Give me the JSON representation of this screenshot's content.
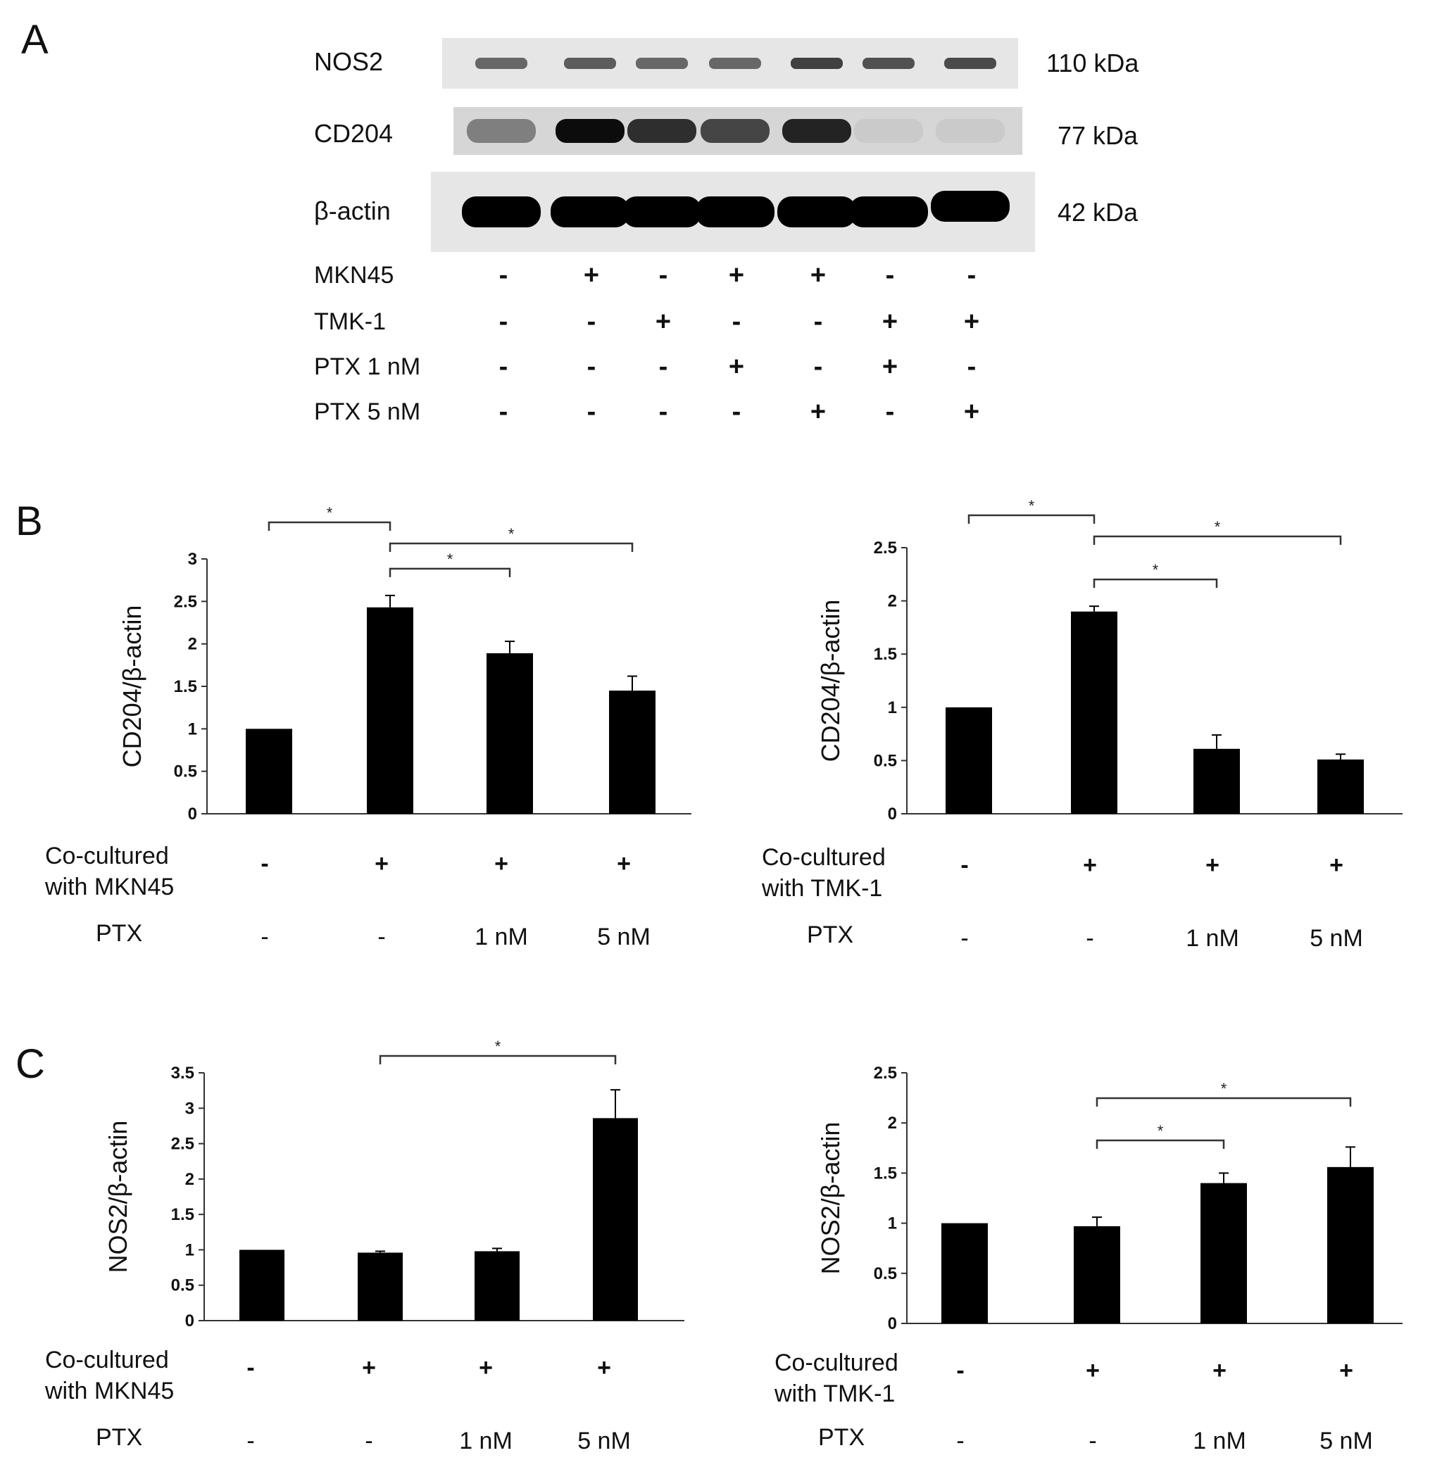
{
  "panels": {
    "a": "A",
    "b": "B",
    "c": "C"
  },
  "blot": {
    "bands": [
      {
        "name": "NOS2",
        "kda": "110 kDa",
        "intensity": [
          0.55,
          0.6,
          0.55,
          0.55,
          0.72,
          0.65,
          0.68
        ]
      },
      {
        "name": "CD204",
        "kda": "77 kDa",
        "intensity": [
          0.45,
          0.95,
          0.8,
          0.7,
          0.85,
          0.12,
          0.12
        ]
      },
      {
        "name": "β-actin",
        "kda": "42 kDa",
        "intensity": [
          1,
          1,
          1,
          1,
          1,
          1,
          1
        ]
      }
    ],
    "conditions": [
      {
        "label": "MKN45",
        "signs": [
          "-",
          "+",
          "-",
          "+",
          "+",
          "-",
          "-"
        ]
      },
      {
        "label": "TMK-1",
        "signs": [
          "-",
          "-",
          "+",
          "-",
          "-",
          "+",
          "+"
        ]
      },
      {
        "label": "PTX 1 nM",
        "signs": [
          "-",
          "-",
          "-",
          "+",
          "-",
          "+",
          "-"
        ]
      },
      {
        "label": "PTX 5 nM",
        "signs": [
          "-",
          "-",
          "-",
          "-",
          "+",
          "-",
          "+"
        ]
      }
    ]
  },
  "chart_data": [
    {
      "type": "bar",
      "panel": "B",
      "ylabel": "CD204/β-actin",
      "categories": [
        "-/-",
        "+/-",
        "+/1 nM",
        "+/5 nM"
      ],
      "values": [
        1.0,
        2.43,
        1.89,
        1.45
      ],
      "errors": [
        0,
        0.14,
        0.14,
        0.17
      ],
      "ylim": [
        0,
        3
      ],
      "ticks": [
        "0",
        "0.5",
        "1",
        "1.5",
        "2",
        "2.5",
        "3"
      ],
      "significance": [
        {
          "from": 0,
          "to": 1,
          "label": "*"
        },
        {
          "from": 1,
          "to": 2,
          "label": "*"
        },
        {
          "from": 1,
          "to": 3,
          "label": "*"
        }
      ],
      "conditions": {
        "row1_label": [
          "Co-cultured",
          "with MKN45"
        ],
        "row1": [
          "-",
          "+",
          "+",
          "+"
        ],
        "row2_label": "PTX",
        "row2": [
          "-",
          "-",
          "1 nM",
          "5 nM"
        ]
      }
    },
    {
      "type": "bar",
      "panel": "B",
      "ylabel": "CD204/β-actin",
      "categories": [
        "-/-",
        "+/-",
        "+/1 nM",
        "+/5 nM"
      ],
      "values": [
        1.0,
        1.9,
        0.61,
        0.51
      ],
      "errors": [
        0,
        0.05,
        0.13,
        0.05
      ],
      "ylim": [
        0,
        2.5
      ],
      "ticks": [
        "0",
        "0.5",
        "1",
        "1.5",
        "2",
        "2.5"
      ],
      "significance": [
        {
          "from": 0,
          "to": 1,
          "label": "*"
        },
        {
          "from": 1,
          "to": 2,
          "label": "*"
        },
        {
          "from": 1,
          "to": 3,
          "label": "*"
        }
      ],
      "conditions": {
        "row1_label": [
          "Co-cultured",
          "with TMK-1"
        ],
        "row1": [
          "-",
          "+",
          "+",
          "+"
        ],
        "row2_label": "PTX",
        "row2": [
          "-",
          "-",
          "1 nM",
          "5 nM"
        ]
      }
    },
    {
      "type": "bar",
      "panel": "C",
      "ylabel": "NOS2/β-actin",
      "categories": [
        "-/-",
        "+/-",
        "+/1 nM",
        "+/5 nM"
      ],
      "values": [
        1.0,
        0.96,
        0.98,
        2.86
      ],
      "errors": [
        0,
        0.02,
        0.04,
        0.4
      ],
      "ylim": [
        0,
        3.5
      ],
      "ticks": [
        "0",
        "0.5",
        "1",
        "1.5",
        "2",
        "2.5",
        "3",
        "3.5"
      ],
      "significance": [
        {
          "from": 1,
          "to": 3,
          "label": "*"
        }
      ],
      "conditions": {
        "row1_label": [
          "Co-cultured",
          "with MKN45"
        ],
        "row1": [
          "-",
          "+",
          "+",
          "+"
        ],
        "row2_label": "PTX",
        "row2": [
          "-",
          "-",
          "1 nM",
          "5 nM"
        ]
      }
    },
    {
      "type": "bar",
      "panel": "C",
      "ylabel": "NOS2/β-actin",
      "categories": [
        "-/-",
        "+/-",
        "+/1 nM",
        "+/5 nM"
      ],
      "values": [
        1.0,
        0.97,
        1.4,
        1.56
      ],
      "errors": [
        0,
        0.09,
        0.1,
        0.2
      ],
      "ylim": [
        0,
        2.5
      ],
      "ticks": [
        "0",
        "0.5",
        "1",
        "1.5",
        "2",
        "2.5"
      ],
      "significance": [
        {
          "from": 1,
          "to": 2,
          "label": "*"
        },
        {
          "from": 1,
          "to": 3,
          "label": "*"
        }
      ],
      "conditions": {
        "row1_label": [
          "Co-cultured",
          "with TMK-1"
        ],
        "row1": [
          "-",
          "+",
          "+",
          "+"
        ],
        "row2_label": "PTX",
        "row2": [
          "-",
          "-",
          "1 nM",
          "5 nM"
        ]
      }
    }
  ]
}
